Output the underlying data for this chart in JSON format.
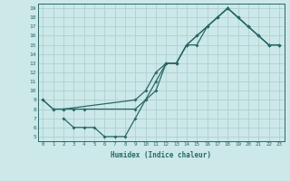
{
  "xlabel": "Humidex (Indice chaleur)",
  "xlim": [
    -0.5,
    23.5
  ],
  "ylim": [
    4.5,
    19.5
  ],
  "yticks": [
    5,
    6,
    7,
    8,
    9,
    10,
    11,
    12,
    13,
    14,
    15,
    16,
    17,
    18,
    19
  ],
  "xticks": [
    0,
    1,
    2,
    3,
    4,
    5,
    6,
    7,
    8,
    9,
    10,
    11,
    12,
    13,
    14,
    15,
    16,
    17,
    18,
    19,
    20,
    21,
    22,
    23
  ],
  "bg_color": "#cce8e8",
  "grid_color": "#b0d0d0",
  "line_color": "#2a6868",
  "curve1_x": [
    0,
    1,
    2,
    3,
    4,
    9,
    10,
    11,
    12,
    13,
    14,
    15,
    16,
    17,
    18,
    19,
    20,
    21,
    22,
    23
  ],
  "curve1_y": [
    9,
    8,
    8,
    8,
    8,
    8,
    9,
    11,
    13,
    13,
    15,
    15,
    17,
    18,
    19,
    18,
    17,
    16,
    15,
    15
  ],
  "curve2_x": [
    0,
    1,
    2,
    9,
    10,
    11,
    12,
    13,
    14,
    15,
    16,
    17,
    18,
    19,
    20,
    21,
    22,
    23
  ],
  "curve2_y": [
    9,
    8,
    8,
    9,
    10,
    12,
    13,
    13,
    15,
    16,
    17,
    18,
    19,
    18,
    17,
    16,
    15,
    15
  ],
  "curve3_x": [
    2,
    3,
    4,
    5,
    6,
    7,
    8,
    9,
    10,
    11,
    12,
    13,
    14,
    15,
    16,
    17,
    18,
    19,
    20,
    21,
    22,
    23
  ],
  "curve3_y": [
    7,
    6,
    6,
    6,
    5,
    5,
    5,
    7,
    9,
    10,
    13,
    13,
    15,
    16,
    17,
    18,
    19,
    18,
    17,
    16,
    15,
    15
  ]
}
